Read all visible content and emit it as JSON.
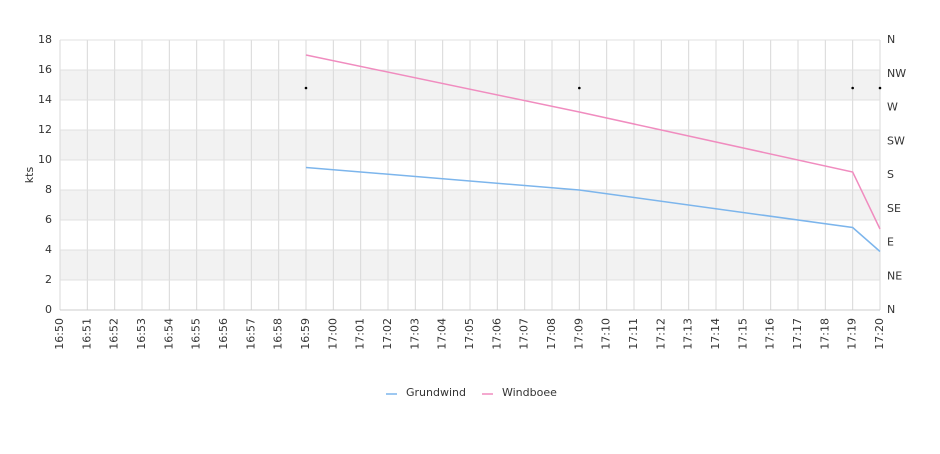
{
  "chart_data": {
    "type": "line",
    "y_label": "kts",
    "categories": [
      "16:50",
      "16:51",
      "16:52",
      "16:53",
      "16:54",
      "16:55",
      "16:56",
      "16:57",
      "16:58",
      "16:59",
      "17:00",
      "17:01",
      "17:02",
      "17:03",
      "17:04",
      "17:05",
      "17:06",
      "17:07",
      "17:08",
      "17:09",
      "17:10",
      "17:11",
      "17:12",
      "17:13",
      "17:14",
      "17:15",
      "17:16",
      "17:17",
      "17:18",
      "17:19",
      "17:20"
    ],
    "series": [
      {
        "name": "Grundwind",
        "color": "#7cb5ec",
        "x": [
          "16:59",
          "17:09",
          "17:19",
          "17:20"
        ],
        "values": [
          9.5,
          8.0,
          5.5,
          3.9
        ]
      },
      {
        "name": "Windboee",
        "color": "#f08cbf",
        "x": [
          "16:59",
          "17:09",
          "17:19",
          "17:20"
        ],
        "values": [
          17.0,
          13.2,
          9.2,
          5.4
        ]
      }
    ],
    "wind_direction": {
      "axis": "y2",
      "color": "#000000",
      "x": [
        "16:59",
        "17:09",
        "17:19",
        "17:20"
      ],
      "values": [
        296,
        296,
        296,
        296
      ]
    },
    "ylim": [
      0,
      18
    ],
    "yticks": [
      0,
      2,
      4,
      6,
      8,
      10,
      12,
      14,
      16,
      18
    ],
    "y2lim": [
      0,
      360
    ],
    "y2ticks": [
      {
        "value": 0,
        "label": "N"
      },
      {
        "value": 45,
        "label": "NE"
      },
      {
        "value": 90,
        "label": "E"
      },
      {
        "value": 135,
        "label": "SE"
      },
      {
        "value": 180,
        "label": "S"
      },
      {
        "value": 225,
        "label": "SW"
      },
      {
        "value": 270,
        "label": "W"
      },
      {
        "value": 315,
        "label": "NW"
      },
      {
        "value": 360,
        "label": "N"
      }
    ],
    "alternate_bands": true,
    "grid": true,
    "legend": "bottom"
  }
}
